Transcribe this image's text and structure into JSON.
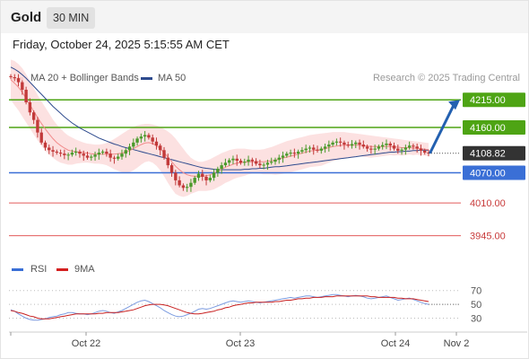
{
  "header": {
    "title": "Gold",
    "timeframe": "30 MIN"
  },
  "timestamp": "Friday, October 24, 2025 5:15:55 AM CET",
  "legend": {
    "ma20_label": "MA 20 + Bollinger Bands",
    "ma50_label": "MA 50",
    "credit": "Research © 2025 Trading Central",
    "rsi_label": "RSI",
    "rsi_ma_label": "9MA"
  },
  "colors": {
    "green": "#4ea414",
    "blue": "#3a6fd6",
    "red_level": "#e25b5b",
    "ma20": "#f28b8b",
    "ma50": "#2e4b8e",
    "band": "#fbdcdc",
    "candle_up": "#4b9a2b",
    "candle_down": "#c23a3a",
    "current": "#333333",
    "arrow": "#2360b0"
  },
  "chart_data": [
    {
      "type": "line",
      "title": "",
      "description_series": "candlestick price with MA 20, Bollinger Bands, MA 50",
      "ylim": [
        3905,
        4235
      ],
      "x_tick_labels": [
        "Oct 22",
        "Oct 23",
        "Oct 24",
        "Nov 2"
      ],
      "levels": [
        {
          "value": 4215.0,
          "label": "4215.00",
          "kind": "resistance"
        },
        {
          "value": 4160.0,
          "label": "4160.00",
          "kind": "resistance"
        },
        {
          "value": 4108.82,
          "label": "4108.82",
          "kind": "current"
        },
        {
          "value": 4070.0,
          "label": "4070.00",
          "kind": "pivot"
        },
        {
          "value": 4010.0,
          "label": "4010.00",
          "kind": "support"
        },
        {
          "value": 3945.0,
          "label": "3945.00",
          "kind": "support"
        }
      ],
      "close": [
        4260,
        4258,
        4250,
        4235,
        4210,
        4190,
        4175,
        4150,
        4130,
        4120,
        4115,
        4112,
        4110,
        4108,
        4105,
        4106,
        4110,
        4112,
        4108,
        4104,
        4100,
        4102,
        4106,
        4110,
        4112,
        4108,
        4100,
        4098,
        4102,
        4108,
        4115,
        4122,
        4130,
        4138,
        4142,
        4145,
        4140,
        4132,
        4124,
        4115,
        4100,
        4085,
        4070,
        4055,
        4045,
        4040,
        4042,
        4050,
        4060,
        4068,
        4062,
        4055,
        4060,
        4070,
        4078,
        4085,
        4090,
        4095,
        4098,
        4094,
        4090,
        4092,
        4096,
        4093,
        4088,
        4085,
        4086,
        4090,
        4092,
        4096,
        4100,
        4104,
        4108,
        4110,
        4108,
        4112,
        4115,
        4118,
        4120,
        4116,
        4114,
        4118,
        4122,
        4126,
        4130,
        4132,
        4130,
        4126,
        4124,
        4127,
        4130,
        4126,
        4122,
        4118,
        4116,
        4118,
        4122,
        4125,
        4128,
        4124,
        4118,
        4114,
        4116,
        4120,
        4124,
        4122,
        4118,
        4114,
        4110,
        4108.82
      ],
      "ma20": [
        4255,
        4248,
        4240,
        4230,
        4218,
        4205,
        4192,
        4180,
        4168,
        4157,
        4147,
        4138,
        4130,
        4124,
        4119,
        4115,
        4113,
        4112,
        4111,
        4110,
        4109,
        4108,
        4107,
        4107,
        4107,
        4107,
        4107,
        4107,
        4108,
        4109,
        4111,
        4114,
        4118,
        4122,
        4126,
        4129,
        4130,
        4128,
        4124,
        4118,
        4110,
        4101,
        4092,
        4083,
        4076,
        4070,
        4066,
        4064,
        4063,
        4063,
        4063,
        4064,
        4066,
        4069,
        4073,
        4077,
        4081,
        4084,
        4087,
        4089,
        4090,
        4091,
        4092,
        4092,
        4092,
        4092,
        4092,
        4093,
        4094,
        4095,
        4097,
        4099,
        4101,
        4103,
        4105,
        4107,
        4109,
        4111,
        4113,
        4114,
        4115,
        4116,
        4118,
        4120,
        4122,
        4123,
        4124,
        4125,
        4125,
        4125,
        4125,
        4125,
        4124,
        4123,
        4122,
        4122,
        4122,
        4122,
        4122,
        4122,
        4121,
        4121,
        4120,
        4120,
        4120,
        4119,
        4119,
        4118,
        4117,
        4116
      ],
      "bb_upper": [
        4295,
        4292,
        4286,
        4278,
        4266,
        4252,
        4238,
        4225,
        4212,
        4200,
        4188,
        4176,
        4166,
        4158,
        4150,
        4144,
        4140,
        4136,
        4133,
        4130,
        4128,
        4127,
        4126,
        4126,
        4127,
        4129,
        4133,
        4137,
        4142,
        4147,
        4152,
        4157,
        4161,
        4164,
        4166,
        4167,
        4167,
        4166,
        4164,
        4161,
        4157,
        4152,
        4146,
        4138,
        4128,
        4118,
        4108,
        4100,
        4095,
        4092,
        4092,
        4094,
        4097,
        4101,
        4105,
        4109,
        4112,
        4115,
        4117,
        4118,
        4118,
        4118,
        4117,
        4116,
        4116,
        4116,
        4117,
        4119,
        4121,
        4124,
        4127,
        4130,
        4133,
        4135,
        4137,
        4139,
        4141,
        4143,
        4145,
        4146,
        4147,
        4148,
        4149,
        4150,
        4151,
        4151,
        4151,
        4151,
        4150,
        4149,
        4148,
        4147,
        4146,
        4145,
        4144,
        4143,
        4142,
        4141,
        4140,
        4139,
        4138,
        4137,
        4136,
        4135,
        4134,
        4133,
        4132,
        4131,
        4130,
        4129
      ],
      "bb_lower": [
        4215,
        4204,
        4194,
        4182,
        4170,
        4158,
        4146,
        4135,
        4124,
        4114,
        4106,
        4100,
        4094,
        4090,
        4088,
        4086,
        4086,
        4088,
        4089,
        4090,
        4090,
        4089,
        4088,
        4088,
        4087,
        4085,
        4081,
        4077,
        4074,
        4071,
        4070,
        4071,
        4075,
        4080,
        4086,
        4091,
        4093,
        4090,
        4084,
        4075,
        4063,
        4050,
        4038,
        4028,
        4024,
        4022,
        4024,
        4028,
        4031,
        4034,
        4034,
        4034,
        4035,
        4037,
        4041,
        4045,
        4050,
        4053,
        4057,
        4060,
        4062,
        4064,
        4067,
        4068,
        4068,
        4068,
        4067,
        4067,
        4067,
        4066,
        4067,
        4068,
        4069,
        4071,
        4073,
        4075,
        4077,
        4079,
        4081,
        4082,
        4083,
        4084,
        4087,
        4090,
        4093,
        4095,
        4097,
        4099,
        4100,
        4101,
        4102,
        4103,
        4102,
        4101,
        4100,
        4101,
        4102,
        4103,
        4104,
        4105,
        4104,
        4105,
        4104,
        4105,
        4106,
        4105,
        4106,
        4105,
        4104,
        4103
      ],
      "ma50": [
        4280,
        4276,
        4271,
        4265,
        4258,
        4250,
        4242,
        4234,
        4226,
        4218,
        4210,
        4202,
        4195,
        4188,
        4181,
        4175,
        4169,
        4164,
        4159,
        4155,
        4151,
        4147,
        4143,
        4139,
        4136,
        4133,
        4130,
        4127,
        4125,
        4122,
        4120,
        4118,
        4116,
        4114,
        4112,
        4110,
        4108,
        4106,
        4104,
        4102,
        4100,
        4098,
        4096,
        4094,
        4092,
        4090,
        4088,
        4086,
        4084,
        4082,
        4080,
        4079,
        4078,
        4077,
        4076,
        4076,
        4076,
        4076,
        4076,
        4076,
        4076,
        4077,
        4077,
        4078,
        4078,
        4079,
        4079,
        4080,
        4081,
        4082,
        4082,
        4083,
        4084,
        4085,
        4086,
        4087,
        4088,
        4089,
        4090,
        4091,
        4092,
        4093,
        4094,
        4095,
        4096,
        4097,
        4098,
        4099,
        4100,
        4101,
        4102,
        4103,
        4104,
        4105,
        4106,
        4107,
        4108,
        4109,
        4110,
        4111,
        4111,
        4112,
        4112,
        4113,
        4113,
        4114,
        4114,
        4115,
        4115,
        4115
      ]
    },
    {
      "type": "line",
      "title": "",
      "ylim": [
        15,
        80
      ],
      "y_tick_labels": [
        "70",
        "50",
        "30"
      ],
      "rsi": [
        42,
        40,
        36,
        33,
        30,
        28,
        27,
        27,
        28,
        29,
        31,
        32,
        33,
        35,
        36,
        38,
        38,
        37,
        36,
        36,
        35,
        36,
        38,
        40,
        41,
        40,
        38,
        37,
        39,
        41,
        44,
        47,
        50,
        53,
        55,
        56,
        54,
        51,
        48,
        45,
        41,
        38,
        35,
        33,
        32,
        33,
        35,
        37,
        40,
        43,
        44,
        43,
        44,
        46,
        48,
        50,
        52,
        54,
        55,
        54,
        53,
        54,
        55,
        54,
        53,
        52,
        53,
        54,
        55,
        56,
        57,
        58,
        59,
        60,
        59,
        60,
        61,
        62,
        62,
        61,
        60,
        61,
        62,
        63,
        64,
        64,
        63,
        62,
        61,
        62,
        63,
        62,
        61,
        59,
        58,
        59,
        60,
        61,
        62,
        60,
        58,
        56,
        57,
        58,
        59,
        57,
        55,
        53,
        51,
        50
      ],
      "rsi_ma": [
        41,
        40,
        38,
        37,
        35,
        33,
        32,
        30,
        29,
        29,
        29,
        30,
        31,
        32,
        33,
        34,
        35,
        36,
        36,
        36,
        36,
        36,
        36,
        37,
        37,
        38,
        38,
        38,
        38,
        39,
        40,
        41,
        42,
        44,
        46,
        48,
        49,
        50,
        50,
        50,
        49,
        48,
        46,
        44,
        42,
        40,
        38,
        37,
        36,
        36,
        37,
        38,
        39,
        40,
        42,
        43,
        45,
        46,
        48,
        49,
        50,
        51,
        52,
        52,
        53,
        53,
        53,
        53,
        53,
        54,
        54,
        55,
        56,
        56,
        57,
        58,
        58,
        59,
        59,
        60,
        60,
        60,
        61,
        61,
        61,
        62,
        62,
        62,
        62,
        62,
        62,
        62,
        62,
        62,
        61,
        61,
        60,
        60,
        60,
        60,
        60,
        59,
        59,
        58,
        58,
        58,
        57,
        56,
        55,
        54
      ]
    }
  ]
}
